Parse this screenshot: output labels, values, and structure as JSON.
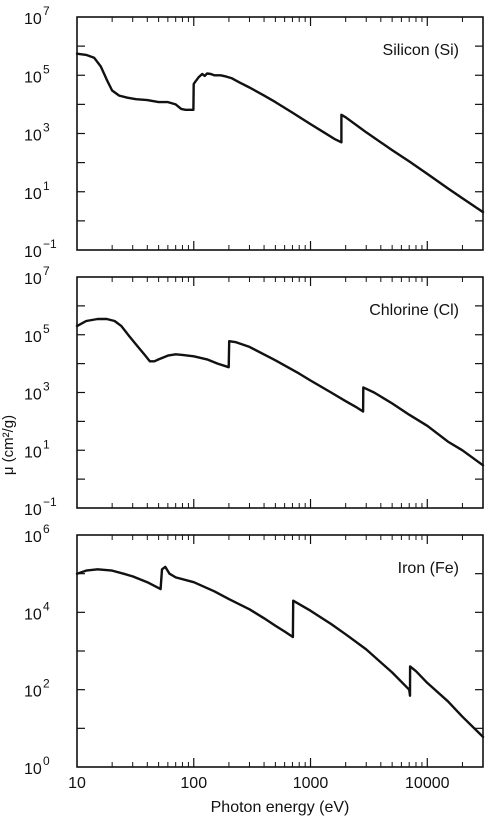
{
  "chart_data": [
    {
      "type": "line",
      "annotation": "Silicon (Si)",
      "xscale": "log",
      "yscale": "log",
      "xlim": [
        10,
        30000
      ],
      "ylim": [
        0.1,
        10000000
      ],
      "x_ticks": [
        "10",
        "100",
        "1000",
        "10000"
      ],
      "y_ticks": [
        {
          "base": "10",
          "exp": "7",
          "value": 10000000
        },
        {
          "base": "10",
          "exp": "5",
          "value": 100000
        },
        {
          "base": "10",
          "exp": "3",
          "value": 1000
        },
        {
          "base": "10",
          "exp": "1",
          "value": 10
        },
        {
          "base": "10",
          "exp": "−1",
          "value": 0.1
        }
      ],
      "series": [
        {
          "x": [
            10,
            12,
            14,
            16,
            18,
            20,
            23,
            27,
            32,
            40,
            50,
            60,
            70,
            78,
            85,
            90,
            95,
            99.2,
            99.8,
            103,
            110,
            118,
            124,
            130,
            140,
            150,
            170,
            190,
            210,
            250,
            300,
            400,
            500,
            700,
            1000,
            1300,
            1600,
            1838,
            1840,
            2000,
            3000,
            5000,
            7000,
            10000,
            15000,
            20000,
            30000
          ],
          "y": [
            550000,
            500000,
            400000,
            200000,
            70000,
            30000,
            20000,
            17000,
            15000,
            14000,
            12000,
            12000,
            10000,
            7000,
            6500,
            6500,
            6500,
            6500,
            50000,
            60000,
            85000,
            110000,
            95000,
            115000,
            110000,
            100000,
            100000,
            90000,
            80000,
            55000,
            38000,
            20000,
            12000,
            5200,
            2100,
            1100,
            650,
            500,
            4400,
            3600,
            1100,
            270,
            110,
            41,
            13,
            6,
            2
          ]
        }
      ]
    },
    {
      "type": "line",
      "annotation": "Chlorine (Cl)",
      "xscale": "log",
      "yscale": "log",
      "xlim": [
        10,
        30000
      ],
      "ylim": [
        0.1,
        10000000
      ],
      "x_ticks": [
        "10",
        "100",
        "1000",
        "10000"
      ],
      "y_ticks": [
        {
          "base": "10",
          "exp": "7",
          "value": 10000000
        },
        {
          "base": "10",
          "exp": "5",
          "value": 100000
        },
        {
          "base": "10",
          "exp": "3",
          "value": 1000
        },
        {
          "base": "10",
          "exp": "1",
          "value": 10
        },
        {
          "base": "10",
          "exp": "−1",
          "value": 0.1
        }
      ],
      "series": [
        {
          "x": [
            10,
            12,
            15,
            18,
            21,
            24,
            28,
            33,
            38,
            42,
            46,
            50,
            60,
            70,
            80,
            100,
            130,
            160,
            199,
            201,
            230,
            300,
            500,
            800,
            1000,
            1500,
            2000,
            2500,
            2820,
            2830,
            3500,
            5000,
            7000,
            10000,
            15000,
            20000,
            30000
          ],
          "y": [
            200000,
            300000,
            350000,
            350000,
            300000,
            200000,
            90000,
            40000,
            20000,
            12000,
            12000,
            14000,
            19000,
            21000,
            20000,
            18000,
            14000,
            10000,
            7500,
            60000,
            55000,
            38000,
            13000,
            4500,
            2600,
            1000,
            500,
            300,
            220,
            1500,
            1000,
            420,
            170,
            70,
            20,
            10,
            3
          ]
        }
      ]
    },
    {
      "type": "line",
      "annotation": "Iron (Fe)",
      "xscale": "log",
      "yscale": "log",
      "xlim": [
        10,
        30000
      ],
      "ylim": [
        1,
        1000000
      ],
      "x_ticks": [
        "10",
        "100",
        "1000",
        "10000"
      ],
      "y_ticks": [
        {
          "base": "10",
          "exp": "6",
          "value": 1000000
        },
        {
          "base": "10",
          "exp": "4",
          "value": 10000
        },
        {
          "base": "10",
          "exp": "2",
          "value": 100
        },
        {
          "base": "10",
          "exp": "0",
          "value": 1
        }
      ],
      "series": [
        {
          "x": [
            10,
            12,
            15,
            20,
            25,
            30,
            40,
            52,
            53.5,
            57,
            62,
            70,
            100,
            150,
            200,
            300,
            400,
            500,
            600,
            707,
            710,
            1000,
            1500,
            2000,
            3000,
            5000,
            7000,
            7110,
            7120,
            8000,
            10000,
            15000,
            20000,
            30000
          ],
          "y": [
            100000,
            120000,
            130000,
            120000,
            100000,
            85000,
            60000,
            40000,
            130000,
            150000,
            100000,
            80000,
            60000,
            35000,
            22000,
            12000,
            7000,
            4500,
            3200,
            2300,
            20000,
            11000,
            5000,
            2700,
            1100,
            280,
            100,
            70,
            400,
            300,
            150,
            50,
            20,
            6
          ]
        }
      ]
    }
  ],
  "shared_xlabel": "Photon energy (eV)",
  "shared_ylabel": "μ (cm²/g)"
}
